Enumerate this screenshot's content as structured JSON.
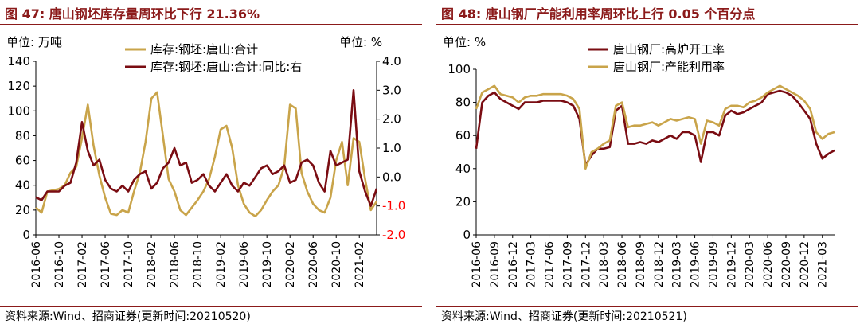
{
  "panels": [
    {
      "title": "图 47:  唐山钢坯库存量周环比下行 21.36%",
      "source": "资料来源:Wind、招商证券(更新时间:20210520)"
    },
    {
      "title": "图 48:  唐山钢厂产能利用率周环比上行 0.05 个百分点",
      "source": "资料来源:Wind、招商证券(更新时间:20210521)"
    }
  ],
  "chart_data": [
    {
      "type": "line",
      "unit_left": "单位:  万吨",
      "unit_right": "单位:   %",
      "x_tick_labels": [
        "2016-06",
        "2016-10",
        "2017-02",
        "2017-06",
        "2017-10",
        "2018-02",
        "2018-06",
        "2018-10",
        "2019-02",
        "2019-06",
        "2019-10",
        "2020-02",
        "2020-06",
        "2020-10",
        "2021-02"
      ],
      "x_start": "2016-06",
      "x_end": "2021-05",
      "ylim_left": [
        0,
        140
      ],
      "yticks_left": [
        "0",
        "20",
        "40",
        "60",
        "80",
        "100",
        "120",
        "140"
      ],
      "ylim_right": [
        -2.0,
        4.0
      ],
      "yticks_right": [
        "-2.0",
        "-1.0",
        "0.0",
        "1.0",
        "2.0",
        "3.0",
        "4.0"
      ],
      "negative_tick_color": "#ff0000",
      "legend_position": "top",
      "series": [
        {
          "name": "库存:钢坯:唐山:合计",
          "axis": "left",
          "color": "#c9a44a",
          "points": [
            [
              "2016-06",
              22
            ],
            [
              "2016-07",
              18
            ],
            [
              "2016-08",
              35
            ],
            [
              "2016-09",
              36
            ],
            [
              "2016-10",
              37
            ],
            [
              "2016-11",
              40
            ],
            [
              "2016-12",
              50
            ],
            [
              "2017-01",
              55
            ],
            [
              "2017-02",
              78
            ],
            [
              "2017-03",
              105
            ],
            [
              "2017-04",
              72
            ],
            [
              "2017-05",
              48
            ],
            [
              "2017-06",
              30
            ],
            [
              "2017-07",
              17
            ],
            [
              "2017-08",
              16
            ],
            [
              "2017-09",
              20
            ],
            [
              "2017-10",
              18
            ],
            [
              "2017-11",
              35
            ],
            [
              "2017-12",
              50
            ],
            [
              "2018-01",
              75
            ],
            [
              "2018-02",
              110
            ],
            [
              "2018-03",
              115
            ],
            [
              "2018-04",
              80
            ],
            [
              "2018-05",
              45
            ],
            [
              "2018-06",
              35
            ],
            [
              "2018-07",
              20
            ],
            [
              "2018-08",
              16
            ],
            [
              "2018-09",
              22
            ],
            [
              "2018-10",
              28
            ],
            [
              "2018-11",
              35
            ],
            [
              "2018-12",
              45
            ],
            [
              "2019-01",
              63
            ],
            [
              "2019-02",
              85
            ],
            [
              "2019-03",
              88
            ],
            [
              "2019-04",
              70
            ],
            [
              "2019-05",
              40
            ],
            [
              "2019-06",
              25
            ],
            [
              "2019-07",
              18
            ],
            [
              "2019-08",
              15
            ],
            [
              "2019-09",
              20
            ],
            [
              "2019-10",
              28
            ],
            [
              "2019-11",
              35
            ],
            [
              "2019-12",
              40
            ],
            [
              "2020-01",
              55
            ],
            [
              "2020-02",
              105
            ],
            [
              "2020-03",
              102
            ],
            [
              "2020-04",
              50
            ],
            [
              "2020-05",
              35
            ],
            [
              "2020-06",
              25
            ],
            [
              "2020-07",
              20
            ],
            [
              "2020-08",
              18
            ],
            [
              "2020-09",
              30
            ],
            [
              "2020-10",
              60
            ],
            [
              "2020-11",
              75
            ],
            [
              "2020-12",
              40
            ],
            [
              "2021-01",
              78
            ],
            [
              "2021-02",
              75
            ],
            [
              "2021-03",
              45
            ],
            [
              "2021-04",
              20
            ],
            [
              "2021-05",
              27
            ]
          ]
        },
        {
          "name": "库存:钢坯:唐山:合计:同比:右",
          "axis": "right",
          "color": "#7a0c12",
          "points": [
            [
              "2016-06",
              -0.7
            ],
            [
              "2016-07",
              -0.8
            ],
            [
              "2016-08",
              -0.5
            ],
            [
              "2016-09",
              -0.5
            ],
            [
              "2016-10",
              -0.5
            ],
            [
              "2016-11",
              -0.3
            ],
            [
              "2016-12",
              -0.2
            ],
            [
              "2017-01",
              0.5
            ],
            [
              "2017-02",
              1.9
            ],
            [
              "2017-03",
              0.9
            ],
            [
              "2017-04",
              0.4
            ],
            [
              "2017-05",
              0.6
            ],
            [
              "2017-06",
              -0.1
            ],
            [
              "2017-07",
              -0.4
            ],
            [
              "2017-08",
              -0.5
            ],
            [
              "2017-09",
              -0.3
            ],
            [
              "2017-10",
              -0.5
            ],
            [
              "2017-11",
              -0.1
            ],
            [
              "2017-12",
              0.1
            ],
            [
              "2018-01",
              0.2
            ],
            [
              "2018-02",
              -0.4
            ],
            [
              "2018-03",
              -0.2
            ],
            [
              "2018-04",
              0.3
            ],
            [
              "2018-05",
              0.5
            ],
            [
              "2018-06",
              1.0
            ],
            [
              "2018-07",
              0.4
            ],
            [
              "2018-08",
              0.5
            ],
            [
              "2018-09",
              -0.2
            ],
            [
              "2018-10",
              -0.1
            ],
            [
              "2018-11",
              0.1
            ],
            [
              "2018-12",
              -0.3
            ],
            [
              "2019-01",
              -0.5
            ],
            [
              "2019-02",
              -0.2
            ],
            [
              "2019-03",
              0.1
            ],
            [
              "2019-04",
              -0.3
            ],
            [
              "2019-05",
              -0.5
            ],
            [
              "2019-06",
              -0.2
            ],
            [
              "2019-07",
              -0.3
            ],
            [
              "2019-08",
              0.0
            ],
            [
              "2019-09",
              0.3
            ],
            [
              "2019-10",
              0.4
            ],
            [
              "2019-11",
              0.1
            ],
            [
              "2019-12",
              0.2
            ],
            [
              "2020-01",
              0.4
            ],
            [
              "2020-02",
              -0.2
            ],
            [
              "2020-03",
              -0.1
            ],
            [
              "2020-04",
              0.5
            ],
            [
              "2020-05",
              0.6
            ],
            [
              "2020-06",
              0.4
            ],
            [
              "2020-07",
              -0.2
            ],
            [
              "2020-08",
              -0.5
            ],
            [
              "2020-09",
              0.9
            ],
            [
              "2020-10",
              0.4
            ],
            [
              "2020-11",
              0.5
            ],
            [
              "2020-12",
              0.6
            ],
            [
              "2021-01",
              3.0
            ],
            [
              "2021-02",
              0.2
            ],
            [
              "2021-03",
              -0.5
            ],
            [
              "2021-04",
              -1.0
            ],
            [
              "2021-05",
              -0.4
            ]
          ]
        }
      ]
    },
    {
      "type": "line",
      "unit_left": "单位:   %",
      "x_tick_labels": [
        "2016-06",
        "2016-09",
        "2016-12",
        "2017-03",
        "2017-06",
        "2017-09",
        "2017-12",
        "2018-03",
        "2018-06",
        "2018-09",
        "2018-12",
        "2019-03",
        "2019-06",
        "2019-09",
        "2019-12",
        "2020-03",
        "2020-06",
        "2020-09",
        "2020-12",
        "2021-03"
      ],
      "x_start": "2016-06",
      "x_end": "2021-05",
      "ylim": [
        0,
        100
      ],
      "yticks": [
        "0",
        "20",
        "40",
        "60",
        "80",
        "100"
      ],
      "legend_position": "top",
      "series": [
        {
          "name": "唐山钢厂:高炉开工率",
          "color": "#7a0c12",
          "points": [
            [
              "2016-06",
              52
            ],
            [
              "2016-07",
              80
            ],
            [
              "2016-08",
              84
            ],
            [
              "2016-09",
              86
            ],
            [
              "2016-10",
              82
            ],
            [
              "2016-11",
              80
            ],
            [
              "2016-12",
              78
            ],
            [
              "2017-01",
              76
            ],
            [
              "2017-02",
              80
            ],
            [
              "2017-03",
              80
            ],
            [
              "2017-04",
              80
            ],
            [
              "2017-05",
              81
            ],
            [
              "2017-06",
              81
            ],
            [
              "2017-07",
              81
            ],
            [
              "2017-08",
              81
            ],
            [
              "2017-09",
              80
            ],
            [
              "2017-10",
              78
            ],
            [
              "2017-11",
              70
            ],
            [
              "2017-12",
              42
            ],
            [
              "2018-01",
              48
            ],
            [
              "2018-02",
              52
            ],
            [
              "2018-03",
              52
            ],
            [
              "2018-04",
              53
            ],
            [
              "2018-05",
              75
            ],
            [
              "2018-06",
              78
            ],
            [
              "2018-07",
              55
            ],
            [
              "2018-08",
              55
            ],
            [
              "2018-09",
              56
            ],
            [
              "2018-10",
              55
            ],
            [
              "2018-11",
              57
            ],
            [
              "2018-12",
              56
            ],
            [
              "2019-01",
              58
            ],
            [
              "2019-02",
              60
            ],
            [
              "2019-03",
              58
            ],
            [
              "2019-04",
              62
            ],
            [
              "2019-05",
              62
            ],
            [
              "2019-06",
              60
            ],
            [
              "2019-07",
              44
            ],
            [
              "2019-08",
              62
            ],
            [
              "2019-09",
              62
            ],
            [
              "2019-10",
              60
            ],
            [
              "2019-11",
              72
            ],
            [
              "2019-12",
              75
            ],
            [
              "2020-01",
              73
            ],
            [
              "2020-02",
              74
            ],
            [
              "2020-03",
              76
            ],
            [
              "2020-04",
              78
            ],
            [
              "2020-05",
              80
            ],
            [
              "2020-06",
              85
            ],
            [
              "2020-07",
              86
            ],
            [
              "2020-08",
              87
            ],
            [
              "2020-09",
              86
            ],
            [
              "2020-10",
              84
            ],
            [
              "2020-11",
              80
            ],
            [
              "2020-12",
              75
            ],
            [
              "2021-01",
              70
            ],
            [
              "2021-02",
              55
            ],
            [
              "2021-03",
              46
            ],
            [
              "2021-04",
              49
            ],
            [
              "2021-05",
              51
            ]
          ]
        },
        {
          "name": "唐山钢厂:产能利用率",
          "color": "#c9a44a",
          "points": [
            [
              "2016-06",
              76
            ],
            [
              "2016-07",
              86
            ],
            [
              "2016-08",
              88
            ],
            [
              "2016-09",
              90
            ],
            [
              "2016-10",
              85
            ],
            [
              "2016-11",
              84
            ],
            [
              "2016-12",
              83
            ],
            [
              "2017-01",
              80
            ],
            [
              "2017-02",
              83
            ],
            [
              "2017-03",
              84
            ],
            [
              "2017-04",
              84
            ],
            [
              "2017-05",
              85
            ],
            [
              "2017-06",
              85
            ],
            [
              "2017-07",
              85
            ],
            [
              "2017-08",
              85
            ],
            [
              "2017-09",
              84
            ],
            [
              "2017-10",
              82
            ],
            [
              "2017-11",
              76
            ],
            [
              "2017-12",
              40
            ],
            [
              "2018-01",
              50
            ],
            [
              "2018-02",
              52
            ],
            [
              "2018-03",
              55
            ],
            [
              "2018-04",
              57
            ],
            [
              "2018-05",
              78
            ],
            [
              "2018-06",
              80
            ],
            [
              "2018-07",
              65
            ],
            [
              "2018-08",
              66
            ],
            [
              "2018-09",
              66
            ],
            [
              "2018-10",
              67
            ],
            [
              "2018-11",
              68
            ],
            [
              "2018-12",
              66
            ],
            [
              "2019-01",
              68
            ],
            [
              "2019-02",
              70
            ],
            [
              "2019-03",
              69
            ],
            [
              "2019-04",
              70
            ],
            [
              "2019-05",
              71
            ],
            [
              "2019-06",
              70
            ],
            [
              "2019-07",
              55
            ],
            [
              "2019-08",
              69
            ],
            [
              "2019-09",
              68
            ],
            [
              "2019-10",
              66
            ],
            [
              "2019-11",
              76
            ],
            [
              "2019-12",
              78
            ],
            [
              "2020-01",
              78
            ],
            [
              "2020-02",
              77
            ],
            [
              "2020-03",
              80
            ],
            [
              "2020-04",
              81
            ],
            [
              "2020-05",
              83
            ],
            [
              "2020-06",
              86
            ],
            [
              "2020-07",
              88
            ],
            [
              "2020-08",
              90
            ],
            [
              "2020-09",
              88
            ],
            [
              "2020-10",
              86
            ],
            [
              "2020-11",
              84
            ],
            [
              "2020-12",
              81
            ],
            [
              "2021-01",
              76
            ],
            [
              "2021-02",
              62
            ],
            [
              "2021-03",
              58
            ],
            [
              "2021-04",
              61
            ],
            [
              "2021-05",
              62
            ]
          ]
        }
      ]
    }
  ]
}
